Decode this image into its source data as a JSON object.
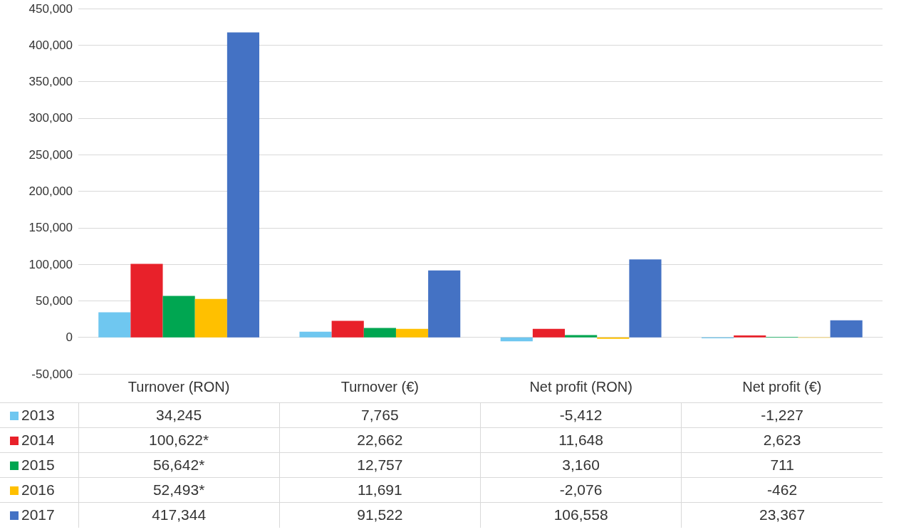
{
  "chart_data": {
    "type": "bar",
    "categories": [
      "Turnover (RON)",
      "Turnover (€)",
      "Net profit (RON)",
      "Net profit (€)"
    ],
    "series": [
      {
        "name": "2013",
        "color": "#6fc7f0",
        "values": [
          34245,
          7765,
          -5412,
          -1227
        ],
        "value_labels": [
          "34,245",
          "7,765",
          "-5,412",
          "-1,227"
        ]
      },
      {
        "name": "2014",
        "color": "#e8212a",
        "values": [
          100622,
          22662,
          11648,
          2623
        ],
        "value_labels": [
          "100,622*",
          "22,662",
          "11,648",
          "2,623"
        ]
      },
      {
        "name": "2015",
        "color": "#00a651",
        "values": [
          56642,
          12757,
          3160,
          711
        ],
        "value_labels": [
          "56,642*",
          "12,757",
          "3,160",
          "711"
        ]
      },
      {
        "name": "2016",
        "color": "#ffc000",
        "values": [
          52493,
          11691,
          -2076,
          -462
        ],
        "value_labels": [
          "52,493*",
          "11,691",
          "-2,076",
          "-462"
        ]
      },
      {
        "name": "2017",
        "color": "#4472c4",
        "values": [
          417344,
          91522,
          106558,
          23367
        ],
        "value_labels": [
          "417,344",
          "91,522",
          "106,558",
          "23,367"
        ]
      }
    ],
    "ylim": [
      -50000,
      450000
    ],
    "yticks": [
      {
        "value": -50000,
        "label": "-50,000"
      },
      0,
      {
        "value": 50000,
        "label": "50,000"
      },
      {
        "value": 100000,
        "label": "100,000"
      },
      {
        "value": 150000,
        "label": "150,000"
      },
      {
        "value": 200000,
        "label": "200,000"
      },
      {
        "value": 250000,
        "label": "250,000"
      },
      {
        "value": 300000,
        "label": "300,000"
      },
      {
        "value": 350000,
        "label": "350,000"
      },
      {
        "value": 400000,
        "label": "400,000"
      },
      {
        "value": 450000,
        "label": "450,000"
      }
    ],
    "grid": "y",
    "legend": "bottom left"
  }
}
